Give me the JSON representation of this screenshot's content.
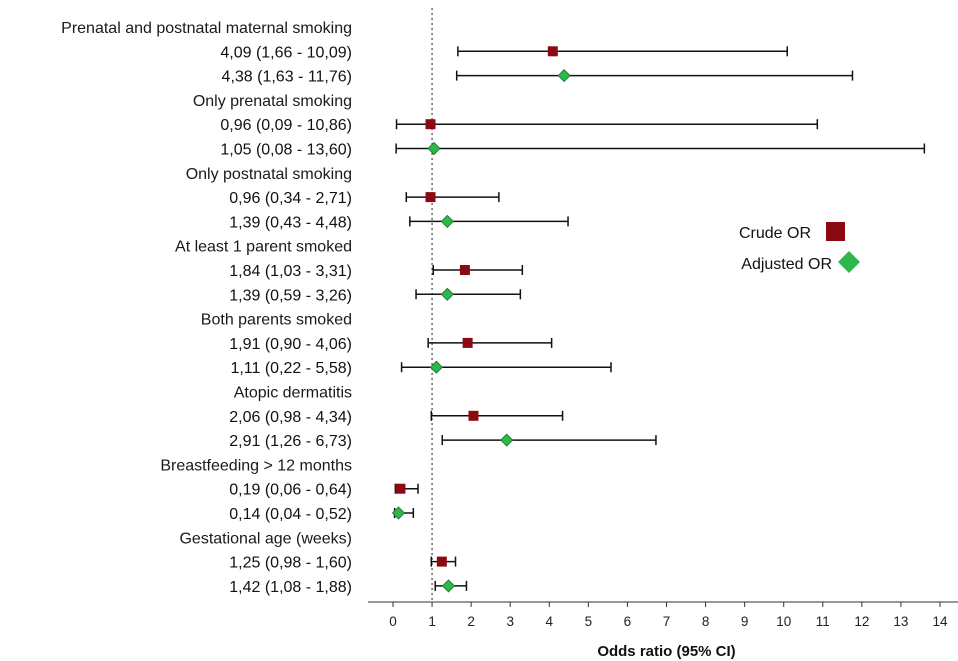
{
  "chart_data": {
    "type": "forest",
    "xlabel": "Odds ratio (95% CI)",
    "xlim": [
      0,
      14
    ],
    "xticks": [
      0,
      1,
      2,
      3,
      4,
      5,
      6,
      7,
      8,
      9,
      10,
      11,
      12,
      13,
      14
    ],
    "reference_line": 1,
    "legend": {
      "position": "right",
      "entries": [
        {
          "label": "Crude OR",
          "marker": "square",
          "color": "#8b0a12"
        },
        {
          "label": "Adjusted OR",
          "marker": "diamond",
          "color": "#2db84a"
        }
      ]
    },
    "groups": [
      {
        "label": "Prenatal and postnatal maternal smoking",
        "rows": [
          {
            "text": "4,09 (1,66 - 10,09)",
            "type": "crude",
            "or": 4.09,
            "lo": 1.66,
            "hi": 10.09
          },
          {
            "text": "4,38 (1,63 - 11,76)",
            "type": "adjusted",
            "or": 4.38,
            "lo": 1.63,
            "hi": 11.76
          }
        ]
      },
      {
        "label": "Only prenatal smoking",
        "rows": [
          {
            "text": "0,96 (0,09 - 10,86)",
            "type": "crude",
            "or": 0.96,
            "lo": 0.09,
            "hi": 10.86
          },
          {
            "text": "1,05 (0,08 - 13,60)",
            "type": "adjusted",
            "or": 1.05,
            "lo": 0.08,
            "hi": 13.6
          }
        ]
      },
      {
        "label": "Only postnatal smoking",
        "rows": [
          {
            "text": "0,96 (0,34 - 2,71)",
            "type": "crude",
            "or": 0.96,
            "lo": 0.34,
            "hi": 2.71
          },
          {
            "text": "1,39 (0,43 - 4,48)",
            "type": "adjusted",
            "or": 1.39,
            "lo": 0.43,
            "hi": 4.48
          }
        ]
      },
      {
        "label": "At least 1 parent smoked",
        "rows": [
          {
            "text": "1,84 (1,03 - 3,31)",
            "type": "crude",
            "or": 1.84,
            "lo": 1.03,
            "hi": 3.31
          },
          {
            "text": "1,39 (0,59 - 3,26)",
            "type": "adjusted",
            "or": 1.39,
            "lo": 0.59,
            "hi": 3.26
          }
        ]
      },
      {
        "label": "Both parents smoked",
        "rows": [
          {
            "text": "1,91 (0,90 - 4,06)",
            "type": "crude",
            "or": 1.91,
            "lo": 0.9,
            "hi": 4.06
          },
          {
            "text": "1,11 (0,22 - 5,58)",
            "type": "adjusted",
            "or": 1.11,
            "lo": 0.22,
            "hi": 5.58
          }
        ]
      },
      {
        "label": "Atopic dermatitis",
        "rows": [
          {
            "text": "2,06 (0,98 - 4,34)",
            "type": "crude",
            "or": 2.06,
            "lo": 0.98,
            "hi": 4.34
          },
          {
            "text": "2,91 (1,26 - 6,73)",
            "type": "adjusted",
            "or": 2.91,
            "lo": 1.26,
            "hi": 6.73
          }
        ]
      },
      {
        "label": "Breastfeeding > 12 months",
        "rows": [
          {
            "text": "0,19 (0,06 - 0,64)",
            "type": "crude",
            "or": 0.19,
            "lo": 0.06,
            "hi": 0.64
          },
          {
            "text": "0,14 (0,04 - 0,52)",
            "type": "adjusted",
            "or": 0.14,
            "lo": 0.04,
            "hi": 0.52
          }
        ]
      },
      {
        "label": "Gestational age (weeks)",
        "rows": [
          {
            "text": "1,25 (0,98 - 1,60)",
            "type": "crude",
            "or": 1.25,
            "lo": 0.98,
            "hi": 1.6
          },
          {
            "text": "1,42 (1,08 - 1,88)",
            "type": "adjusted",
            "or": 1.42,
            "lo": 1.08,
            "hi": 1.88
          }
        ]
      }
    ]
  }
}
